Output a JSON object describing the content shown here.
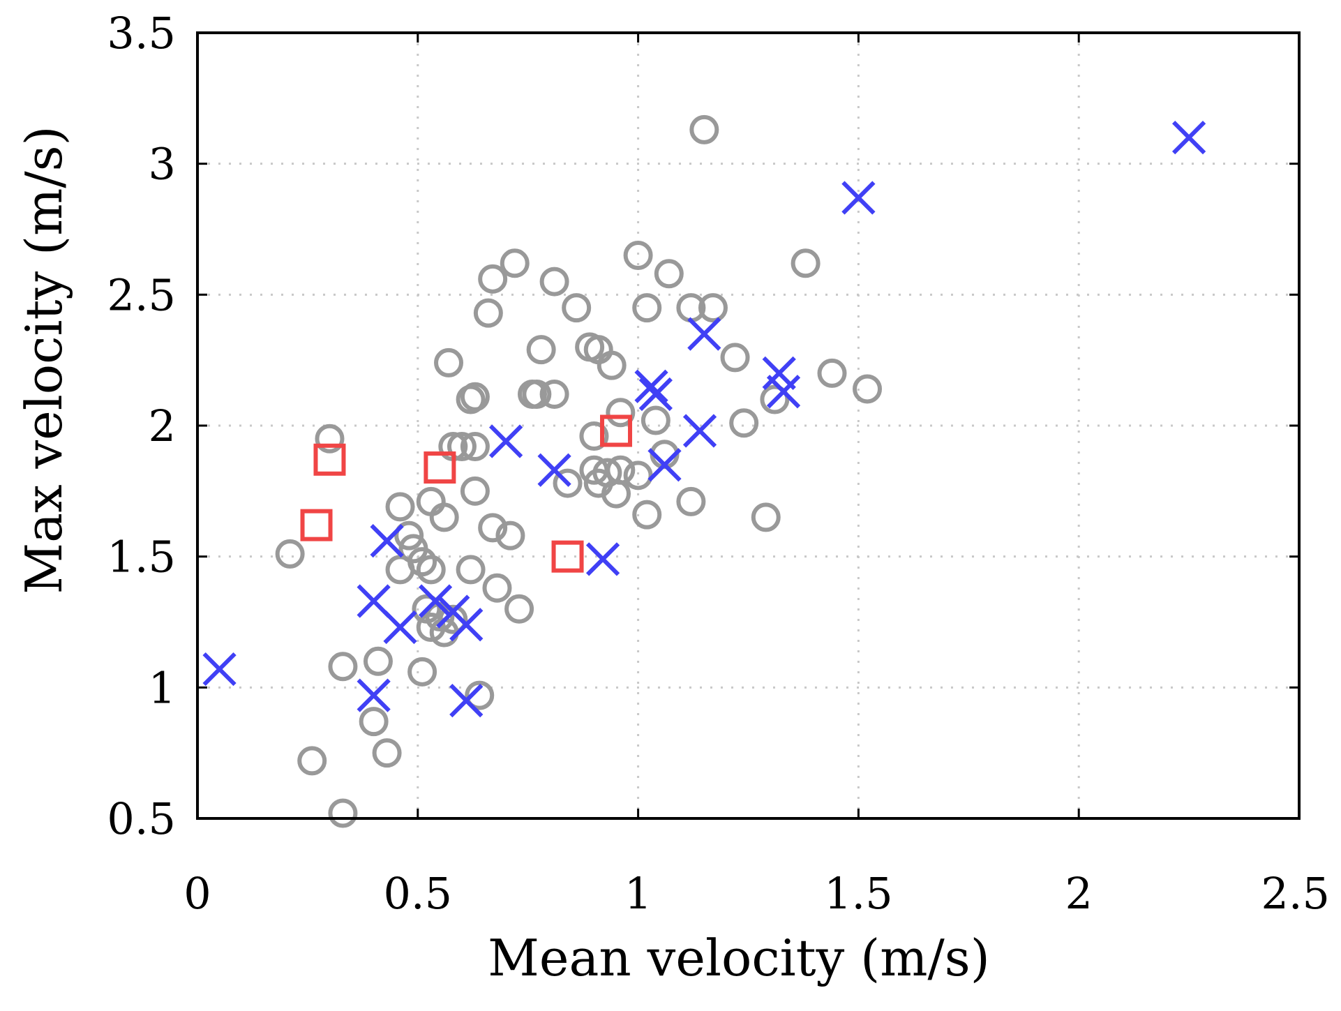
{
  "chart_data": {
    "type": "scatter",
    "xlabel": "Mean velocity (m/s)",
    "ylabel": "Max velocity (m/s)",
    "xlim": [
      0,
      2.5
    ],
    "ylim": [
      0.5,
      3.5
    ],
    "xticks": [
      0,
      0.5,
      1,
      1.5,
      2,
      2.5
    ],
    "xtick_labels": [
      "0",
      "0.5",
      "1",
      "1.5",
      "2",
      "2.5"
    ],
    "yticks": [
      0.5,
      1,
      1.5,
      2,
      2.5,
      3,
      3.5
    ],
    "ytick_labels": [
      "0.5",
      "1",
      "1.5",
      "2",
      "2.5",
      "3",
      "3.5"
    ],
    "grid": true,
    "series": [
      {
        "marker": "circle",
        "color": "#999999",
        "points": [
          [
            1.15,
            3.13
          ],
          [
            1.38,
            2.62
          ],
          [
            1.0,
            2.65
          ],
          [
            1.07,
            2.58
          ],
          [
            0.72,
            2.62
          ],
          [
            0.67,
            2.56
          ],
          [
            0.81,
            2.55
          ],
          [
            0.66,
            2.43
          ],
          [
            0.86,
            2.45
          ],
          [
            1.02,
            2.45
          ],
          [
            1.12,
            2.45
          ],
          [
            1.17,
            2.45
          ],
          [
            0.78,
            2.29
          ],
          [
            0.89,
            2.3
          ],
          [
            0.91,
            2.29
          ],
          [
            0.94,
            2.23
          ],
          [
            1.22,
            2.26
          ],
          [
            0.57,
            2.24
          ],
          [
            1.44,
            2.2
          ],
          [
            1.52,
            2.14
          ],
          [
            0.62,
            2.1
          ],
          [
            0.63,
            2.11
          ],
          [
            0.76,
            2.12
          ],
          [
            0.77,
            2.12
          ],
          [
            0.81,
            2.12
          ],
          [
            1.31,
            2.1
          ],
          [
            0.96,
            2.05
          ],
          [
            1.04,
            2.02
          ],
          [
            1.24,
            2.01
          ],
          [
            0.3,
            1.95
          ],
          [
            0.58,
            1.92
          ],
          [
            0.6,
            1.92
          ],
          [
            0.63,
            1.92
          ],
          [
            0.9,
            1.96
          ],
          [
            1.06,
            1.89
          ],
          [
            0.9,
            1.83
          ],
          [
            0.93,
            1.82
          ],
          [
            0.96,
            1.83
          ],
          [
            1.0,
            1.81
          ],
          [
            0.84,
            1.78
          ],
          [
            0.91,
            1.78
          ],
          [
            0.95,
            1.74
          ],
          [
            0.63,
            1.75
          ],
          [
            0.53,
            1.71
          ],
          [
            0.46,
            1.69
          ],
          [
            0.56,
            1.65
          ],
          [
            1.02,
            1.66
          ],
          [
            1.12,
            1.71
          ],
          [
            1.29,
            1.65
          ],
          [
            0.67,
            1.61
          ],
          [
            0.71,
            1.58
          ],
          [
            0.48,
            1.58
          ],
          [
            0.49,
            1.53
          ],
          [
            0.51,
            1.48
          ],
          [
            0.53,
            1.45
          ],
          [
            0.46,
            1.45
          ],
          [
            0.62,
            1.45
          ],
          [
            0.21,
            1.51
          ],
          [
            0.68,
            1.38
          ],
          [
            0.73,
            1.3
          ],
          [
            0.52,
            1.3
          ],
          [
            0.55,
            1.27
          ],
          [
            0.58,
            1.26
          ],
          [
            0.53,
            1.23
          ],
          [
            0.56,
            1.21
          ],
          [
            0.33,
            1.08
          ],
          [
            0.41,
            1.1
          ],
          [
            0.51,
            1.06
          ],
          [
            0.64,
            0.97
          ],
          [
            0.4,
            0.87
          ],
          [
            0.43,
            0.75
          ],
          [
            0.26,
            0.72
          ],
          [
            0.33,
            0.52
          ]
        ]
      },
      {
        "marker": "x",
        "color": "#4040f5",
        "points": [
          [
            2.25,
            3.1
          ],
          [
            1.5,
            2.87
          ],
          [
            1.15,
            2.35
          ],
          [
            1.32,
            2.2
          ],
          [
            1.33,
            2.13
          ],
          [
            1.03,
            2.15
          ],
          [
            1.04,
            2.12
          ],
          [
            1.14,
            1.98
          ],
          [
            0.7,
            1.94
          ],
          [
            0.81,
            1.83
          ],
          [
            1.06,
            1.85
          ],
          [
            0.92,
            1.49
          ],
          [
            0.43,
            1.56
          ],
          [
            0.4,
            1.33
          ],
          [
            0.46,
            1.23
          ],
          [
            0.54,
            1.33
          ],
          [
            0.58,
            1.29
          ],
          [
            0.61,
            1.24
          ],
          [
            0.05,
            1.07
          ],
          [
            0.4,
            0.97
          ],
          [
            0.61,
            0.95
          ]
        ]
      },
      {
        "marker": "square",
        "color": "#f04545",
        "points": [
          [
            0.3,
            1.87
          ],
          [
            0.55,
            1.84
          ],
          [
            0.95,
            1.98
          ],
          [
            0.27,
            1.62
          ],
          [
            0.84,
            1.5
          ]
        ]
      }
    ]
  }
}
